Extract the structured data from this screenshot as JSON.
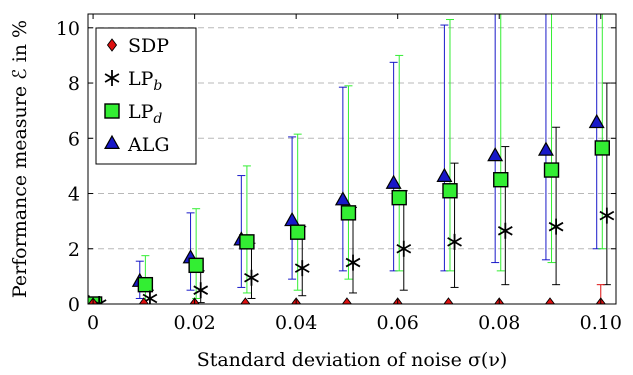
{
  "chart_data": {
    "type": "scatter",
    "xlabel": "Standard deviation of noise σ(ν)",
    "ylabel": "Performance measure ℰ in %",
    "xlim": [
      -0.001,
      0.103
    ],
    "ylim": [
      0,
      10.5
    ],
    "x_ticks": [
      0,
      0.02,
      0.04,
      0.06,
      0.08,
      0.1
    ],
    "x_tick_labels": [
      "0",
      "0.02",
      "0.04",
      "0.06",
      "0.08",
      "0.10"
    ],
    "y_ticks": [
      0,
      2,
      4,
      6,
      8,
      10
    ],
    "y_tick_labels": [
      "0",
      "2",
      "4",
      "6",
      "8",
      "10"
    ],
    "grid": "horizontal dashed",
    "legend_position": "top-left",
    "series": [
      {
        "name": "SDP",
        "marker": "diamond",
        "color": "#dd1010",
        "offset": 0,
        "x": [
          0,
          0.01,
          0.02,
          0.03,
          0.04,
          0.05,
          0.06,
          0.07,
          0.08,
          0.09,
          0.1
        ],
        "y": [
          0,
          0,
          0,
          0,
          0,
          0,
          0,
          0,
          0,
          0,
          0
        ],
        "err_low": [
          0,
          0,
          0,
          0,
          0,
          0,
          0,
          0,
          0,
          0,
          0
        ],
        "err_high": [
          0,
          0,
          0,
          0,
          0,
          0,
          0,
          0,
          0,
          0,
          0.7
        ]
      },
      {
        "name": "LP",
        "subscript": "b",
        "marker": "star",
        "color": "#000000",
        "offset": 0.0012,
        "x": [
          0,
          0.01,
          0.02,
          0.03,
          0.04,
          0.05,
          0.06,
          0.07,
          0.08,
          0.09,
          0.1
        ],
        "y": [
          0,
          0.2,
          0.5,
          0.95,
          1.3,
          1.5,
          2.0,
          2.25,
          2.65,
          2.8,
          3.2
        ],
        "err_low": [
          0,
          0,
          0.05,
          0.2,
          0.3,
          0.4,
          0.5,
          0.6,
          0.7,
          0.7,
          0.7
        ],
        "err_high": [
          0,
          0.5,
          1.2,
          2.2,
          2.8,
          3.5,
          4.1,
          5.1,
          5.7,
          6.4,
          8.0
        ]
      },
      {
        "name": "LP",
        "subscript": "d",
        "marker": "square",
        "color": "#33ee33",
        "offset": 0.0003,
        "x": [
          0,
          0.01,
          0.02,
          0.03,
          0.04,
          0.05,
          0.06,
          0.07,
          0.08,
          0.09,
          0.1
        ],
        "y": [
          0,
          0.7,
          1.4,
          2.25,
          2.6,
          3.3,
          3.85,
          4.1,
          4.5,
          4.85,
          5.65
        ],
        "err_low": [
          0,
          0,
          0.2,
          0.4,
          0.5,
          0.9,
          1.2,
          1.2,
          1.2,
          1.5,
          2.0
        ],
        "err_high": [
          0,
          1.75,
          3.45,
          5.0,
          6.15,
          7.9,
          9.0,
          10.3,
          11.0,
          11.0,
          11.0
        ]
      },
      {
        "name": "ALG",
        "marker": "triangle",
        "color": "#1818c8",
        "offset": -0.0008,
        "x": [
          0,
          0.01,
          0.02,
          0.03,
          0.04,
          0.05,
          0.06,
          0.07,
          0.08,
          0.09,
          0.1
        ],
        "y": [
          0,
          0.8,
          1.65,
          2.3,
          3.0,
          3.75,
          4.35,
          4.6,
          5.35,
          5.55,
          6.55
        ],
        "err_low": [
          0,
          0.2,
          0.5,
          0.6,
          0.9,
          1.2,
          1.2,
          1.2,
          1.5,
          1.6,
          2.0
        ],
        "err_high": [
          0,
          1.55,
          3.3,
          4.65,
          6.05,
          7.85,
          8.75,
          10.1,
          11.0,
          11.0,
          11.0
        ]
      }
    ]
  }
}
